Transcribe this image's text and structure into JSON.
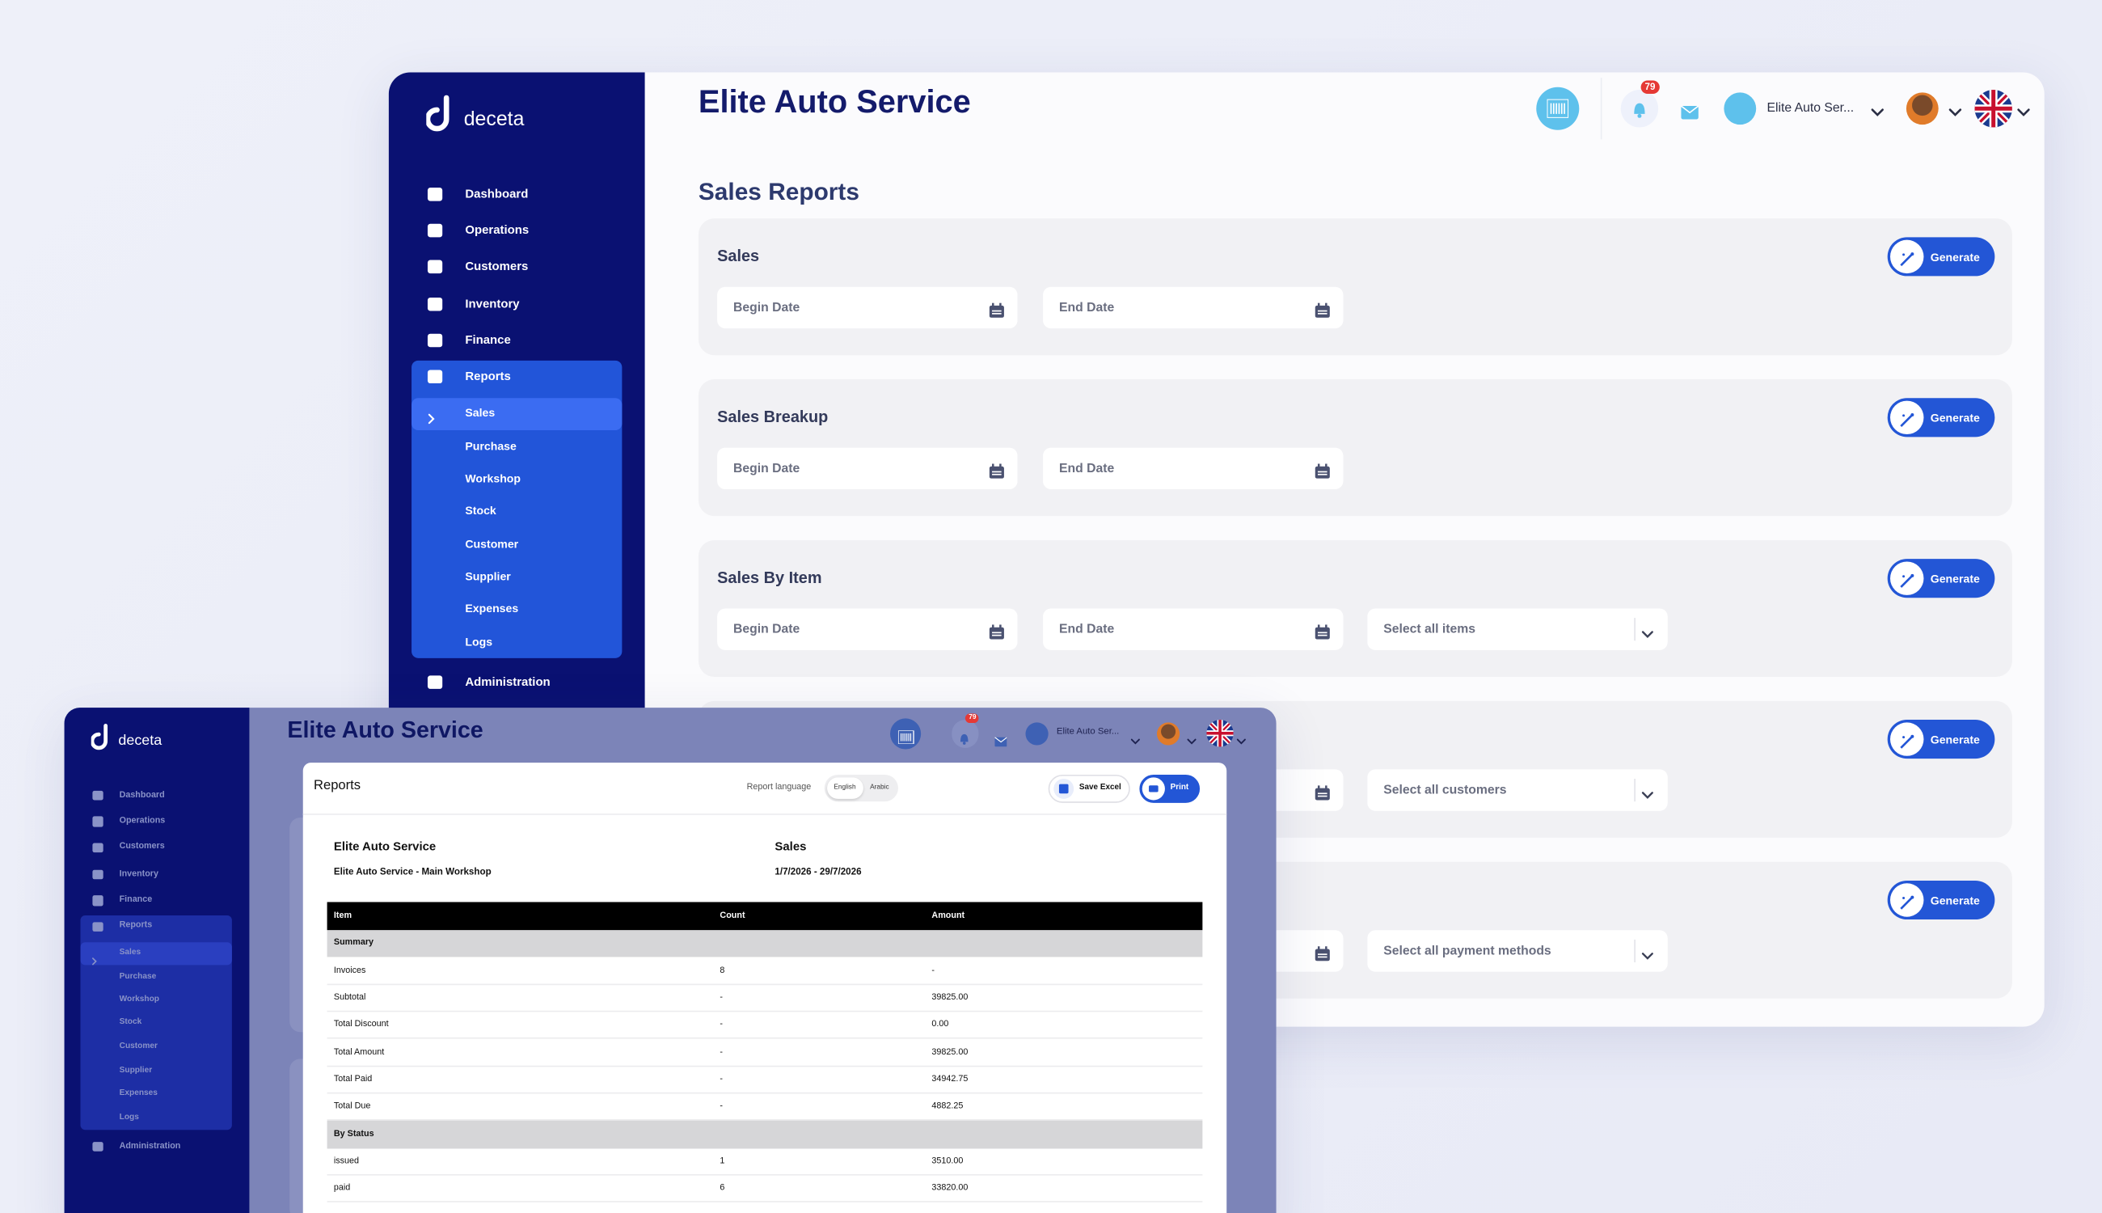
{
  "back_window": {
    "brand": "deceta",
    "title": "Elite Auto Service",
    "notification_count": "79",
    "branch": "Elite Auto Ser...",
    "nav": [
      "Dashboard",
      "Operations",
      "Customers",
      "Inventory",
      "Finance",
      "Reports",
      "Administration"
    ],
    "reports_submenu": [
      "Sales",
      "Purchase",
      "Workshop",
      "Stock",
      "Customer",
      "Supplier",
      "Expenses",
      "Logs"
    ],
    "page_title": "Sales Reports",
    "cards": [
      {
        "title": "Sales",
        "begin": "Begin Date",
        "end": "End Date",
        "button": "Generate"
      },
      {
        "title": "Sales Breakup",
        "begin": "Begin Date",
        "end": "End Date",
        "button": "Generate"
      },
      {
        "title": "Sales By Item",
        "begin": "Begin Date",
        "end": "End Date",
        "select": "Select all items",
        "button": "Generate"
      },
      {
        "select": "Select all customers",
        "button": "Generate"
      },
      {
        "select": "Select all payment methods",
        "button": "Generate"
      }
    ]
  },
  "front_window": {
    "brand": "deceta",
    "title": "Elite Auto Service",
    "notification_count": "79",
    "branch": "Elite Auto Ser...",
    "nav": [
      "Dashboard",
      "Operations",
      "Customers",
      "Inventory",
      "Finance",
      "Reports",
      "Administration"
    ],
    "reports_submenu": [
      "Sales",
      "Purchase",
      "Workshop",
      "Stock",
      "Customer",
      "Supplier",
      "Expenses",
      "Logs"
    ],
    "modal": {
      "title": "Reports",
      "language_label": "Report language",
      "languages": [
        "English",
        "Arabic"
      ],
      "save_button": "Save Excel",
      "print_button": "Print",
      "company": "Elite Auto Service",
      "branch": "Elite Auto Service - Main Workshop",
      "report_name": "Sales",
      "period": "1/7/2026 - 29/7/2026",
      "table": {
        "columns": [
          "Item",
          "Count",
          "Amount"
        ],
        "rows": [
          [
            "Summary"
          ],
          [
            "Invoices",
            "8",
            "-"
          ],
          [
            "Subtotal",
            "-",
            "39825.00"
          ],
          [
            "Total Discount",
            "-",
            "0.00"
          ],
          [
            "Total Amount",
            "-",
            "39825.00"
          ],
          [
            "Total Paid",
            "-",
            "34942.75"
          ],
          [
            "Total Due",
            "-",
            "4882.25"
          ],
          [
            "By Status"
          ],
          [
            "issued",
            "1",
            "3510.00"
          ],
          [
            "paid",
            "6",
            "33820.00"
          ]
        ]
      }
    }
  }
}
